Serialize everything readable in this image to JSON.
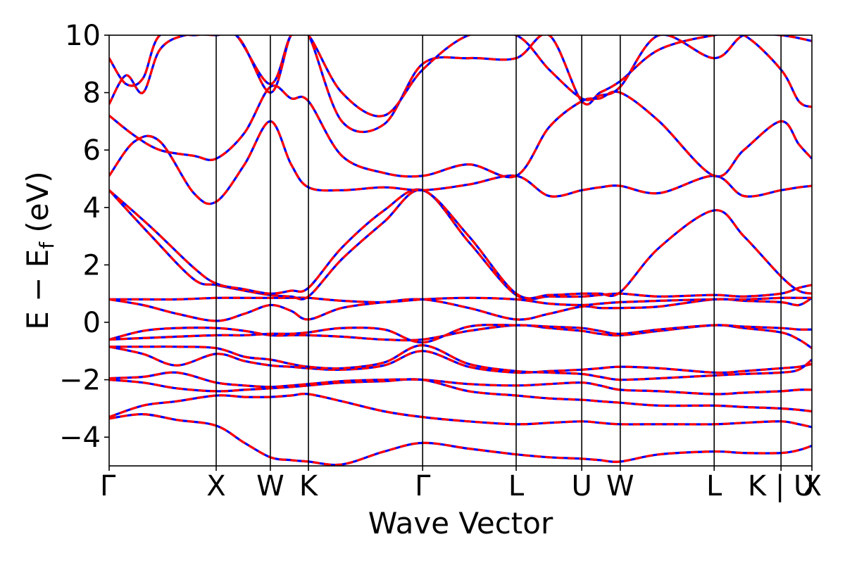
{
  "chart_data": {
    "type": "line",
    "title": "",
    "xlabel": "Wave Vector",
    "ylabel": {
      "main": "E − E",
      "sub": "f",
      "unit": " (eV)"
    },
    "ylim": [
      -5,
      10
    ],
    "yticks": [
      -4,
      -2,
      0,
      2,
      4,
      6,
      8,
      10
    ],
    "ytick_labels": [
      "−4",
      "−2",
      "0",
      "2",
      "4",
      "6",
      "8",
      "10"
    ],
    "kpoint_positions": [
      0,
      0.253,
      0.381,
      0.471,
      0.741,
      0.962,
      1.117,
      1.208,
      1.43,
      1.588,
      1.661
    ],
    "kpoint_labels": [
      "Γ",
      "X",
      "W",
      "K",
      "Γ",
      "L",
      "U",
      "W",
      "L",
      "K | U",
      "X"
    ],
    "grid": false,
    "line_colors": {
      "primary": "#ff0000",
      "secondary": "#0000ff"
    },
    "series": [
      {
        "x": [
          0,
          0.08,
          0.16,
          0.253,
          0.32,
          0.381,
          0.43,
          0.471,
          0.55,
          0.65,
          0.741,
          0.85,
          0.962,
          1.04,
          1.117,
          1.16,
          1.208,
          1.3,
          1.43,
          1.5,
          1.588,
          1.63,
          1.661
        ],
        "y": [
          -3.35,
          -3.2,
          -3.4,
          -3.6,
          -4.2,
          -4.7,
          -4.8,
          -4.85,
          -4.95,
          -4.5,
          -4.2,
          -4.4,
          -4.6,
          -4.7,
          -4.75,
          -4.8,
          -4.85,
          -4.6,
          -4.5,
          -4.55,
          -4.55,
          -4.45,
          -4.3
        ]
      },
      {
        "x": [
          0,
          0.08,
          0.16,
          0.253,
          0.32,
          0.381,
          0.43,
          0.471,
          0.55,
          0.65,
          0.741,
          0.85,
          0.962,
          1.04,
          1.117,
          1.16,
          1.208,
          1.3,
          1.43,
          1.5,
          1.588,
          1.63,
          1.661
        ],
        "y": [
          -3.3,
          -2.9,
          -2.75,
          -2.55,
          -2.6,
          -2.6,
          -2.55,
          -2.5,
          -2.75,
          -3.1,
          -3.3,
          -3.45,
          -3.55,
          -3.5,
          -3.45,
          -3.5,
          -3.55,
          -3.55,
          -3.55,
          -3.5,
          -3.45,
          -3.55,
          -3.65
        ]
      },
      {
        "x": [
          0,
          0.08,
          0.16,
          0.253,
          0.32,
          0.381,
          0.43,
          0.471,
          0.55,
          0.65,
          0.741,
          0.85,
          0.962,
          1.04,
          1.117,
          1.16,
          1.208,
          1.3,
          1.43,
          1.5,
          1.588,
          1.63,
          1.661
        ],
        "y": [
          -2.0,
          -2.1,
          -2.3,
          -2.4,
          -2.35,
          -2.3,
          -2.25,
          -2.2,
          -2.1,
          -2.05,
          -2.0,
          -2.4,
          -2.55,
          -2.65,
          -2.7,
          -2.75,
          -2.8,
          -2.9,
          -2.9,
          -2.95,
          -3.0,
          -3.05,
          -3.1
        ]
      },
      {
        "x": [
          0,
          0.08,
          0.16,
          0.253,
          0.32,
          0.381,
          0.43,
          0.471,
          0.55,
          0.65,
          0.741,
          0.85,
          0.962,
          1.04,
          1.117,
          1.16,
          1.208,
          1.3,
          1.43,
          1.5,
          1.588,
          1.63,
          1.661
        ],
        "y": [
          -1.95,
          -1.9,
          -1.75,
          -2.1,
          -2.2,
          -2.25,
          -2.2,
          -2.15,
          -2.05,
          -2.0,
          -2.0,
          -2.15,
          -2.2,
          -2.15,
          -2.1,
          -2.2,
          -2.35,
          -2.4,
          -2.5,
          -2.45,
          -2.4,
          -2.35,
          -2.35
        ]
      },
      {
        "x": [
          0,
          0.08,
          0.16,
          0.253,
          0.32,
          0.381,
          0.43,
          0.471,
          0.55,
          0.65,
          0.741,
          0.85,
          0.962,
          1.04,
          1.117,
          1.16,
          1.208,
          1.3,
          1.43,
          1.5,
          1.588,
          1.63,
          1.661
        ],
        "y": [
          -0.85,
          -1.1,
          -1.5,
          -1.1,
          -1.35,
          -1.5,
          -1.55,
          -1.6,
          -1.65,
          -1.5,
          -1.0,
          -1.55,
          -1.75,
          -1.7,
          -1.65,
          -1.6,
          -1.55,
          -1.6,
          -1.75,
          -1.7,
          -1.6,
          -1.55,
          -1.45
        ]
      },
      {
        "x": [
          0,
          0.08,
          0.16,
          0.253,
          0.32,
          0.381,
          0.43,
          0.471,
          0.55,
          0.65,
          0.741,
          0.85,
          0.962,
          1.04,
          1.117,
          1.16,
          1.208,
          1.3,
          1.43,
          1.5,
          1.588,
          1.63,
          1.661
        ],
        "y": [
          -0.85,
          -0.85,
          -0.85,
          -0.9,
          -1.2,
          -1.3,
          -1.45,
          -1.55,
          -1.6,
          -1.4,
          -0.8,
          -1.45,
          -1.7,
          -1.75,
          -1.8,
          -1.9,
          -2.0,
          -1.95,
          -1.85,
          -1.8,
          -1.75,
          -1.65,
          -1.3
        ]
      },
      {
        "x": [
          0,
          0.08,
          0.16,
          0.253,
          0.32,
          0.381,
          0.43,
          0.471,
          0.55,
          0.65,
          0.741,
          0.85,
          0.962,
          1.04,
          1.117,
          1.16,
          1.208,
          1.3,
          1.43,
          1.5,
          1.588,
          1.63,
          1.661
        ],
        "y": [
          -0.6,
          -0.3,
          -0.2,
          -0.2,
          -0.3,
          -0.45,
          -0.45,
          -0.45,
          -0.5,
          -0.6,
          -0.6,
          -0.3,
          -0.1,
          -0.2,
          -0.3,
          -0.4,
          -0.45,
          -0.3,
          -0.1,
          -0.2,
          -0.35,
          -0.6,
          -0.9
        ]
      },
      {
        "x": [
          0,
          0.08,
          0.16,
          0.253,
          0.32,
          0.381,
          0.43,
          0.471,
          0.55,
          0.65,
          0.741,
          0.85,
          0.962,
          1.04,
          1.117,
          1.16,
          1.208,
          1.3,
          1.43,
          1.5,
          1.588,
          1.63,
          1.661
        ],
        "y": [
          -0.6,
          -0.55,
          -0.5,
          -0.45,
          -0.45,
          -0.4,
          -0.4,
          -0.35,
          -0.2,
          -0.25,
          -0.7,
          -0.15,
          -0.1,
          -0.15,
          -0.2,
          -0.3,
          -0.4,
          -0.25,
          -0.1,
          -0.15,
          -0.2,
          -0.25,
          -0.25
        ]
      },
      {
        "x": [
          0,
          0.08,
          0.16,
          0.253,
          0.32,
          0.381,
          0.43,
          0.471,
          0.55,
          0.65,
          0.741,
          0.85,
          0.962,
          1.04,
          1.117,
          1.16,
          1.208,
          1.3,
          1.43,
          1.5,
          1.588,
          1.63,
          1.661
        ],
        "y": [
          0.8,
          0.6,
          0.3,
          0.05,
          0.3,
          0.6,
          0.4,
          0.1,
          0.5,
          0.7,
          0.8,
          0.5,
          0.1,
          0.3,
          0.55,
          0.5,
          0.5,
          0.55,
          0.8,
          0.75,
          0.7,
          0.6,
          0.85
        ]
      },
      {
        "x": [
          0,
          0.08,
          0.16,
          0.253,
          0.32,
          0.381,
          0.43,
          0.471,
          0.55,
          0.65,
          0.741,
          0.85,
          0.962,
          1.04,
          1.117,
          1.16,
          1.208,
          1.3,
          1.43,
          1.5,
          1.588,
          1.63,
          1.661
        ],
        "y": [
          0.8,
          0.8,
          0.8,
          0.85,
          0.85,
          0.85,
          0.85,
          0.85,
          0.75,
          0.7,
          0.8,
          0.85,
          0.8,
          0.65,
          0.6,
          0.65,
          0.7,
          0.75,
          0.8,
          0.8,
          0.85,
          0.85,
          0.85
        ]
      },
      {
        "x": [
          0,
          0.1,
          0.2,
          0.253,
          0.32,
          0.381,
          0.43,
          0.471,
          0.55,
          0.65,
          0.741,
          0.85,
          0.962,
          1.04,
          1.117,
          1.16,
          1.208,
          1.3,
          1.43,
          1.5,
          1.588,
          1.63,
          1.661
        ],
        "y": [
          4.6,
          3.0,
          1.5,
          1.3,
          1.1,
          0.95,
          0.9,
          0.9,
          2.2,
          3.5,
          4.6,
          2.8,
          0.95,
          0.9,
          0.9,
          0.95,
          1.0,
          0.9,
          0.95,
          0.9,
          1.0,
          1.2,
          1.3
        ]
      },
      {
        "x": [
          0,
          0.1,
          0.2,
          0.253,
          0.32,
          0.381,
          0.43,
          0.471,
          0.55,
          0.65,
          0.741,
          0.85,
          0.962,
          1.04,
          1.117,
          1.16,
          1.208,
          1.3,
          1.43,
          1.5,
          1.588,
          1.63,
          1.661
        ],
        "y": [
          4.6,
          3.3,
          1.9,
          1.35,
          1.15,
          1.0,
          1.1,
          1.2,
          2.6,
          3.9,
          4.6,
          3.0,
          1.0,
          0.95,
          1.0,
          1.0,
          1.05,
          2.6,
          3.9,
          3.0,
          1.6,
          1.1,
          1.0
        ]
      },
      {
        "x": [
          0,
          0.06,
          0.12,
          0.2,
          0.253,
          0.32,
          0.381,
          0.43,
          0.471,
          0.55,
          0.65,
          0.741,
          0.85,
          0.962,
          1.04,
          1.117,
          1.16,
          1.208,
          1.3,
          1.43,
          1.5,
          1.588,
          1.63,
          1.661
        ],
        "y": [
          5.1,
          6.3,
          6.3,
          4.5,
          4.2,
          5.5,
          7.0,
          5.5,
          4.7,
          4.6,
          4.7,
          4.6,
          4.8,
          5.1,
          4.4,
          4.6,
          4.7,
          4.75,
          4.5,
          5.1,
          4.4,
          4.6,
          4.7,
          4.75
        ]
      },
      {
        "x": [
          0,
          0.06,
          0.12,
          0.2,
          0.253,
          0.32,
          0.381,
          0.43,
          0.471,
          0.55,
          0.65,
          0.741,
          0.85,
          0.962,
          1.04,
          1.117,
          1.16,
          1.208,
          1.3,
          1.43,
          1.5,
          1.588,
          1.63,
          1.661
        ],
        "y": [
          7.2,
          6.5,
          6.0,
          5.8,
          5.7,
          6.6,
          8.2,
          7.8,
          7.7,
          5.8,
          5.2,
          5.1,
          5.5,
          5.1,
          6.8,
          7.7,
          7.8,
          8.0,
          7.0,
          5.1,
          6.0,
          7.0,
          6.2,
          5.7
        ]
      },
      {
        "x": [
          0,
          0.04,
          0.08,
          0.12,
          0.18,
          0.253,
          0.3,
          0.381,
          0.43,
          0.471,
          0.55,
          0.65,
          0.741,
          0.85,
          0.962,
          1.04,
          1.117,
          1.16,
          1.208,
          1.3,
          1.43,
          1.5,
          1.588,
          1.63,
          1.661
        ],
        "y": [
          7.6,
          8.6,
          8.0,
          9.5,
          10.0,
          10.0,
          10.0,
          8.3,
          10.0,
          10.0,
          7.0,
          6.9,
          9.0,
          9.2,
          9.2,
          10.0,
          7.7,
          8.0,
          8.4,
          9.5,
          10.0,
          10.0,
          8.8,
          7.7,
          7.5
        ]
      },
      {
        "x": [
          0,
          0.04,
          0.08,
          0.12,
          0.2,
          0.3,
          0.381,
          0.43,
          0.471,
          0.55,
          0.65,
          0.741,
          0.85,
          0.962,
          1.04,
          1.117,
          1.16,
          1.208,
          1.3,
          1.43,
          1.5,
          1.588,
          1.661
        ],
        "y": [
          9.2,
          8.3,
          8.5,
          10.0,
          10.0,
          10.0,
          8.0,
          10.0,
          10.0,
          8.0,
          7.2,
          8.8,
          10.0,
          10.0,
          8.8,
          7.8,
          7.9,
          8.2,
          10.0,
          9.2,
          10.0,
          10.0,
          9.8
        ]
      }
    ]
  }
}
